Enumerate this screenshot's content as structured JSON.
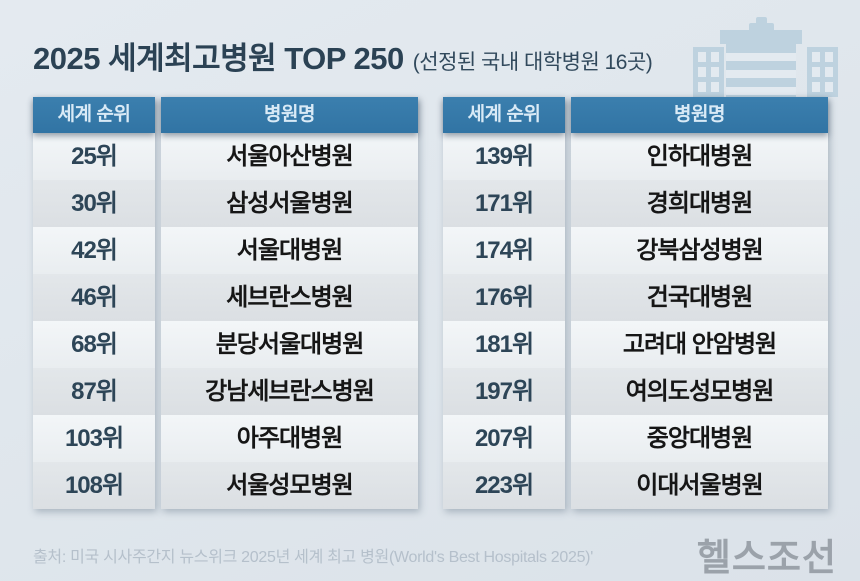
{
  "title": {
    "main": "2025 세계최고병원 TOP 250",
    "sub": "(선정된 국내 대학병원 16곳)"
  },
  "tables": [
    {
      "headers": {
        "rank": "세계 순위",
        "name": "병원명"
      },
      "rows": [
        {
          "rank": "25위",
          "name": "서울아산병원"
        },
        {
          "rank": "30위",
          "name": "삼성서울병원"
        },
        {
          "rank": "42위",
          "name": "서울대병원"
        },
        {
          "rank": "46위",
          "name": "세브란스병원"
        },
        {
          "rank": "68위",
          "name": "분당서울대병원"
        },
        {
          "rank": "87위",
          "name": "강남세브란스병원"
        },
        {
          "rank": "103위",
          "name": "아주대병원"
        },
        {
          "rank": "108위",
          "name": "서울성모병원"
        }
      ]
    },
    {
      "headers": {
        "rank": "세계 순위",
        "name": "병원명"
      },
      "rows": [
        {
          "rank": "139위",
          "name": "인하대병원"
        },
        {
          "rank": "171위",
          "name": "경희대병원"
        },
        {
          "rank": "174위",
          "name": "강북삼성병원"
        },
        {
          "rank": "176위",
          "name": "건국대병원"
        },
        {
          "rank": "181위",
          "name": "고려대 안암병원"
        },
        {
          "rank": "197위",
          "name": "여의도성모병원"
        },
        {
          "rank": "207위",
          "name": "중앙대병원"
        },
        {
          "rank": "223위",
          "name": "이대서울병원"
        }
      ]
    }
  ],
  "footer": {
    "source": "출처: 미국 시사주간지 뉴스위크 2025년 세계 최고 병원(World's Best Hospitals 2025)'"
  },
  "logo": {
    "text": "헬스조선"
  },
  "icons": {
    "hospital": "hospital-building-icon"
  },
  "colors": {
    "page_bg": "#dfe6ec",
    "header_bg": "#3478a8",
    "header_text": "#d9eaf6",
    "row_light": "#eff3f6",
    "row_gray": "#dfe3e6",
    "title_text": "#2b4254",
    "rank_text": "#2d4557",
    "name_text": "#161616",
    "icon_blue": "#bed2df",
    "source_text": "#b5c0cb",
    "logo_text": "#9ba2aa"
  },
  "chart_data": {
    "type": "table",
    "title": "2025 세계최고병원 TOP 250",
    "subtitle": "(선정된 국내 대학병원 16곳)",
    "columns": [
      "세계 순위",
      "병원명"
    ],
    "rows": [
      [
        "25위",
        "서울아산병원"
      ],
      [
        "30위",
        "삼성서울병원"
      ],
      [
        "42위",
        "서울대병원"
      ],
      [
        "46위",
        "세브란스병원"
      ],
      [
        "68위",
        "분당서울대병원"
      ],
      [
        "87위",
        "강남세브란스병원"
      ],
      [
        "103위",
        "아주대병원"
      ],
      [
        "108위",
        "서울성모병원"
      ],
      [
        "139위",
        "인하대병원"
      ],
      [
        "171위",
        "경희대병원"
      ],
      [
        "174위",
        "강북삼성병원"
      ],
      [
        "176위",
        "건국대병원"
      ],
      [
        "181위",
        "고려대 안암병원"
      ],
      [
        "197위",
        "여의도성모병원"
      ],
      [
        "207위",
        "중앙대병원"
      ],
      [
        "223위",
        "이대서울병원"
      ]
    ],
    "source": "출처: 미국 시사주간지 뉴스위크 2025년 세계 최고 병원(World's Best Hospitals 2025)'"
  }
}
